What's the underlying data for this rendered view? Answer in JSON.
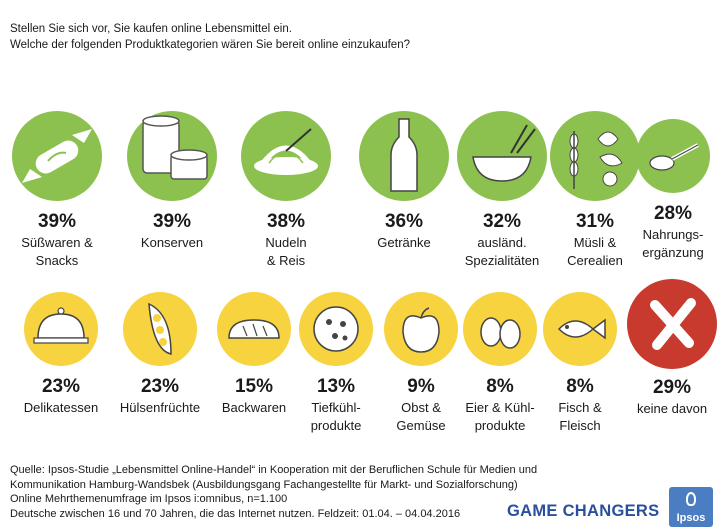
{
  "question_line1": "Stellen Sie sich vor, Sie kaufen online Lebensmittel ein.",
  "question_line2": "Welche der folgenden Produktkategorien  wären Sie bereit online einzukaufen?",
  "colors": {
    "green": "#8dc14f",
    "yellow": "#f6d33f",
    "red": "#c73a2d",
    "brand": "#2a4f9c"
  },
  "row1": [
    {
      "pct": "39%",
      "label1": "Süßwaren &",
      "label2": "Snacks",
      "icon": "candy-icon"
    },
    {
      "pct": "39%",
      "label1": "Konserven",
      "label2": "",
      "icon": "cans-icon"
    },
    {
      "pct": "38%",
      "label1": "Nudeln",
      "label2": "& Reis",
      "icon": "noodles-icon"
    },
    {
      "pct": "36%",
      "label1": "Getränke",
      "label2": "",
      "icon": "bottle-icon"
    },
    {
      "pct": "32%",
      "label1": "ausländ.",
      "label2": "Spezialitäten",
      "icon": "bowl-chopsticks-icon"
    },
    {
      "pct": "31%",
      "label1": "Müsli &",
      "label2": "Cerealien",
      "icon": "grain-icon"
    },
    {
      "pct": "28%",
      "label1": "Nahrungs-",
      "label2": "ergänzung",
      "icon": "spoon-icon"
    }
  ],
  "row2": [
    {
      "pct": "23%",
      "label1": "Delikatessen",
      "label2": "",
      "icon": "cloche-icon"
    },
    {
      "pct": "23%",
      "label1": "Hülsenfrüchte",
      "label2": "",
      "icon": "pea-pod-icon"
    },
    {
      "pct": "15%",
      "label1": "Backwaren",
      "label2": "",
      "icon": "bread-icon"
    },
    {
      "pct": "13%",
      "label1": "Tiefkühl-",
      "label2": "produkte",
      "icon": "pizza-icon"
    },
    {
      "pct": "9%",
      "label1": "Obst &",
      "label2": "Gemüse",
      "icon": "apple-icon"
    },
    {
      "pct": "8%",
      "label1": "Eier & Kühl-",
      "label2": "produkte",
      "icon": "eggs-icon"
    },
    {
      "pct": "8%",
      "label1": "Fisch &",
      "label2": "Fleisch",
      "icon": "fish-icon"
    },
    {
      "pct": "29%",
      "label1": "keine davon",
      "label2": "",
      "icon": "cross-icon"
    }
  ],
  "source": {
    "line1": "Quelle: Ipsos-Studie „Lebensmittel Online-Handel“ in Kooperation  mit der Beruflichen Schule für Medien und",
    "line2": "Kommunikation  Hamburg-Wandsbek (Ausbildungsgang Fachangestellte für Markt- und Sozialforschung)",
    "line3": "Online Mehrthemenumfrage  im Ipsos i:omnibus, n=1.100",
    "line4": "Deutsche zwischen 16 und 70 Jahren, die das Internet nutzen. Feldzeit: 01.04. – 04.04.2016"
  },
  "brand": "GAME CHANGERS",
  "logo": "Ipsos"
}
